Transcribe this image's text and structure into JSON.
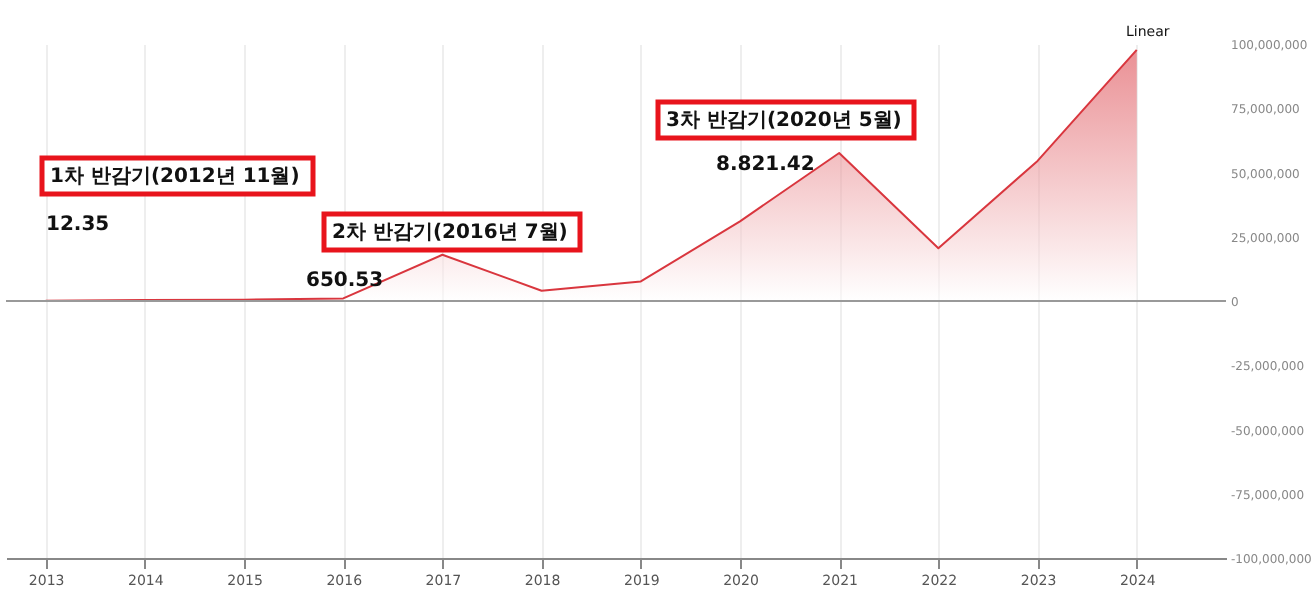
{
  "chart_data": {
    "type": "area",
    "x": [
      2013,
      2014,
      2015,
      2016,
      2017,
      2018,
      2019,
      2020,
      2021,
      2022,
      2023,
      2024
    ],
    "series": [
      {
        "color": "#d9363e",
        "values": [
          100000,
          400000,
          500000,
          1000000,
          18000000,
          4000000,
          7600000,
          31000000,
          57600000,
          20500000,
          54500000,
          97700000
        ]
      }
    ],
    "xlim": [
      2012.6,
      2024.9
    ],
    "xticks": [
      2013,
      2014,
      2015,
      2016,
      2017,
      2018,
      2019,
      2020,
      2021,
      2022,
      2023,
      2024
    ],
    "ylim": [
      -100000000,
      100000000
    ],
    "yticks": [
      {
        "value": -100000000,
        "label": "-100,000,000"
      },
      {
        "value": -75000000,
        "label": "-75,000,000"
      },
      {
        "value": -50000000,
        "label": "-50,000,000"
      },
      {
        "value": -25000000,
        "label": "-25,000,000"
      },
      0,
      {
        "value": 25000000,
        "label": "25,000,000"
      },
      {
        "value": 50000000,
        "label": "50,000,000"
      },
      {
        "value": 75000000,
        "label": "75,000,000"
      },
      {
        "value": 100000000,
        "label": "100,000,000"
      }
    ],
    "grid": "x",
    "ref_lines": [
      {
        "axis": "y",
        "value": 0,
        "color": "#999999"
      }
    ],
    "annotations": [
      "1차 반감기(2012년 11월)",
      "12.35",
      "2차 반감기(2016년 7월)",
      "650.53",
      "3차 반감기(2020년 5월)",
      "8.821.42",
      "Linear"
    ]
  }
}
